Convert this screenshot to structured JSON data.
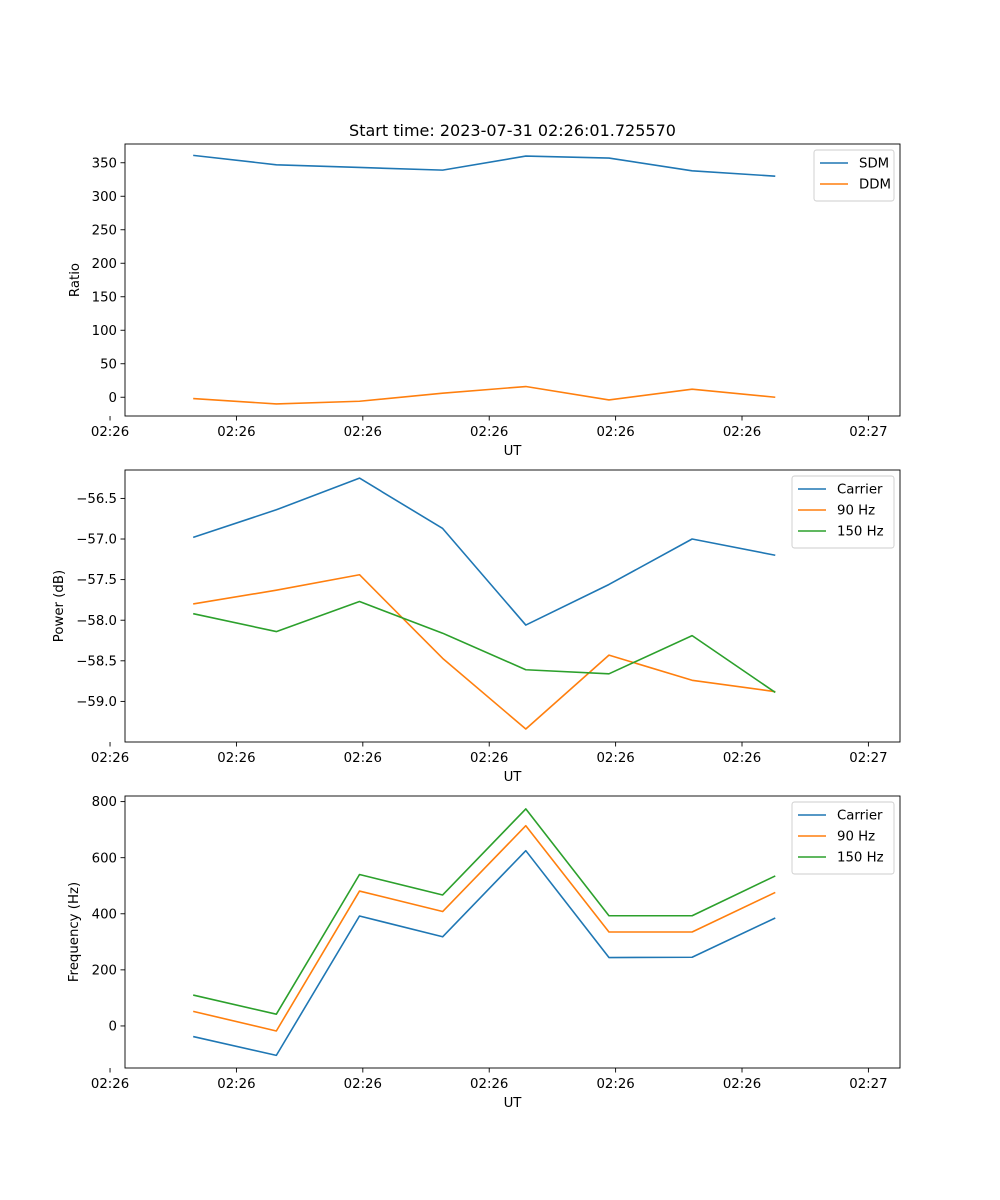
{
  "colors": {
    "blue": "#1f77b4",
    "orange": "#ff7f0e",
    "green": "#2ca02c"
  },
  "chart_data": [
    {
      "type": "line",
      "title": "Start time: 2023-07-31 02:26:01.725570",
      "xlabel": "UT",
      "ylabel": "Ratio",
      "x": [
        1,
        2,
        3,
        4,
        5,
        6,
        7,
        8
      ],
      "xlim": [
        0.18,
        9.5
      ],
      "xticks": [
        0,
        1.52,
        3.04,
        4.56,
        6.08,
        7.6,
        9.12
      ],
      "xtick_labels": [
        "02:26",
        "02:26",
        "02:26",
        "02:26",
        "02:26",
        "02:26",
        "02:27"
      ],
      "ylim": [
        -28,
        378
      ],
      "yticks": [
        0,
        50,
        100,
        150,
        200,
        250,
        300,
        350
      ],
      "ytick_labels": [
        "0",
        "50",
        "100",
        "150",
        "200",
        "250",
        "300",
        "350"
      ],
      "legend_position": "top-right",
      "series": [
        {
          "name": "SDM",
          "color": "#1f77b4",
          "values": [
            361,
            347,
            343,
            339,
            360,
            357,
            338,
            330
          ]
        },
        {
          "name": "DDM",
          "color": "#ff7f0e",
          "values": [
            -2,
            -10,
            -6,
            6,
            16,
            -4,
            12,
            0
          ]
        }
      ]
    },
    {
      "type": "line",
      "xlabel": "UT",
      "ylabel": "Power (dB)",
      "x": [
        1,
        2,
        3,
        4,
        5,
        6,
        7,
        8
      ],
      "xlim": [
        0.18,
        9.5
      ],
      "xticks": [
        0,
        1.52,
        3.04,
        4.56,
        6.08,
        7.6,
        9.12
      ],
      "xtick_labels": [
        "02:26",
        "02:26",
        "02:26",
        "02:26",
        "02:26",
        "02:26",
        "02:27"
      ],
      "ylim": [
        -59.5,
        -56.15
      ],
      "yticks": [
        -59.0,
        -58.5,
        -58.0,
        -57.5,
        -57.0,
        -56.5
      ],
      "ytick_labels": [
        "−59.0",
        "−58.5",
        "−58.0",
        "−57.5",
        "−57.0",
        "−56.5"
      ],
      "legend_position": "top-right",
      "series": [
        {
          "name": "Carrier",
          "color": "#1f77b4",
          "values": [
            -56.98,
            -56.64,
            -56.25,
            -56.87,
            -58.06,
            -57.56,
            -57.0,
            -57.2
          ]
        },
        {
          "name": "90 Hz",
          "color": "#ff7f0e",
          "values": [
            -57.8,
            -57.63,
            -57.44,
            -58.47,
            -59.34,
            -58.43,
            -58.74,
            -58.88
          ]
        },
        {
          "name": "150 Hz",
          "color": "#2ca02c",
          "values": [
            -57.92,
            -58.14,
            -57.77,
            -58.16,
            -58.61,
            -58.66,
            -58.19,
            -58.89
          ]
        }
      ]
    },
    {
      "type": "line",
      "xlabel": "UT",
      "ylabel": "Frequency (Hz)",
      "x": [
        1,
        2,
        3,
        4,
        5,
        6,
        7,
        8
      ],
      "xlim": [
        0.18,
        9.5
      ],
      "xticks": [
        0,
        1.52,
        3.04,
        4.56,
        6.08,
        7.6,
        9.12
      ],
      "xtick_labels": [
        "02:26",
        "02:26",
        "02:26",
        "02:26",
        "02:26",
        "02:26",
        "02:27"
      ],
      "ylim": [
        -150,
        820
      ],
      "yticks": [
        0,
        200,
        400,
        600,
        800
      ],
      "ytick_labels": [
        "0",
        "200",
        "400",
        "600",
        "800"
      ],
      "legend_position": "top-right",
      "series": [
        {
          "name": "Carrier",
          "color": "#1f77b4",
          "values": [
            -38,
            -105,
            392,
            318,
            625,
            244,
            245,
            385
          ]
        },
        {
          "name": "90 Hz",
          "color": "#ff7f0e",
          "values": [
            52,
            -18,
            481,
            408,
            714,
            335,
            335,
            476
          ]
        },
        {
          "name": "150 Hz",
          "color": "#2ca02c",
          "values": [
            110,
            42,
            540,
            467,
            774,
            393,
            393,
            535
          ]
        }
      ]
    }
  ]
}
